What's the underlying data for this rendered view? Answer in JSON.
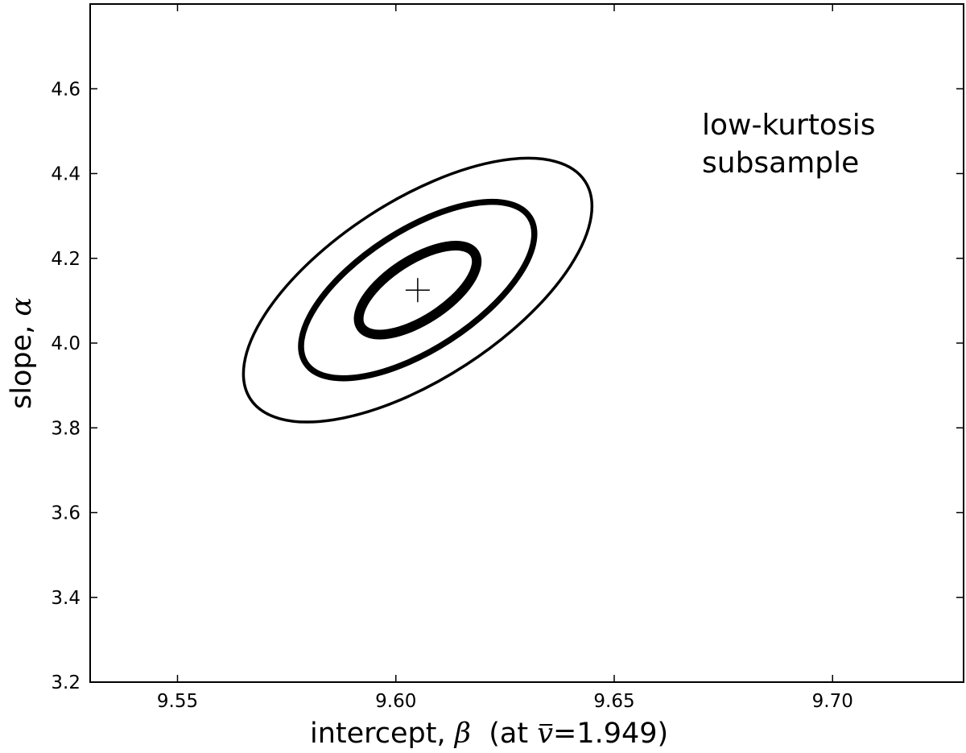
{
  "chart_data": {
    "type": "contour",
    "xlabel": {
      "text": "intercept, ",
      "symbol": "β",
      "suffix_open": "  (at ",
      "bar_symbol": "v",
      "equals": "=",
      "value": "1.949",
      "suffix_close": ")"
    },
    "ylabel": {
      "text": "slope, ",
      "symbol": "α"
    },
    "xlim": [
      9.53,
      9.73
    ],
    "ylim": [
      3.2,
      4.8
    ],
    "xticks": [
      9.55,
      9.6,
      9.65,
      9.7
    ],
    "xtick_labels": [
      "9.55",
      "9.60",
      "9.65",
      "9.70"
    ],
    "yticks": [
      3.2,
      3.4,
      3.6,
      3.8,
      4.0,
      4.2,
      4.4,
      4.6
    ],
    "ytick_labels": [
      "3.2",
      "3.4",
      "3.6",
      "3.8",
      "4.0",
      "4.2",
      "4.4",
      "4.6"
    ],
    "annotation": [
      "low-kurtosis",
      "subsample"
    ],
    "best_fit": {
      "x": 9.605,
      "y": 4.125
    },
    "contours": [
      {
        "level": 1,
        "stroke": "thick",
        "rx": 0.0155,
        "ry": 0.14,
        "rotation": -33
      },
      {
        "level": 2,
        "stroke": "medium",
        "rx": 0.0306,
        "ry": 0.28,
        "rotation": -33
      },
      {
        "level": 3,
        "stroke": "thin",
        "rx": 0.0457,
        "ry": 0.42,
        "rotation": -33
      }
    ],
    "grid": false,
    "colors": {
      "line": "#000000",
      "background": "#ffffff"
    }
  }
}
